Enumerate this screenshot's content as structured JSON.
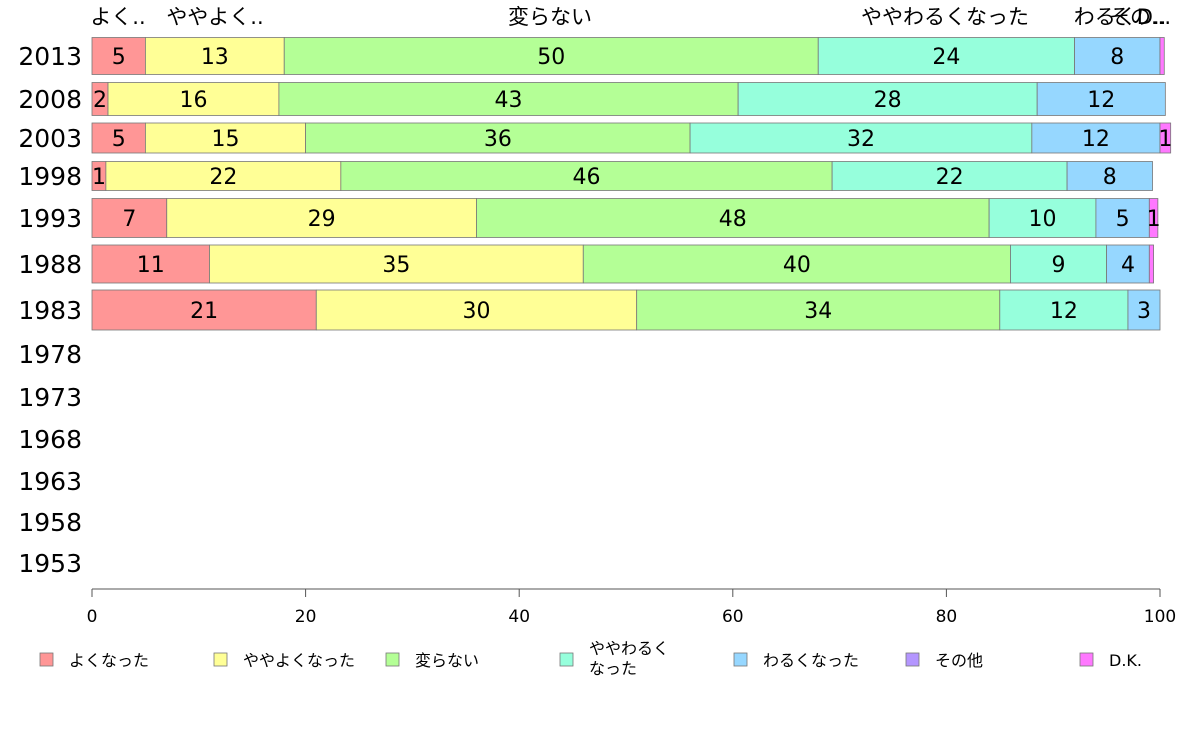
{
  "chart_data": {
    "type": "bar",
    "orientation": "horizontal",
    "stacked": true,
    "categories": [
      "2013",
      "2008",
      "2003",
      "1998",
      "1993",
      "1988",
      "1983",
      "1978",
      "1973",
      "1968",
      "1963",
      "1958",
      "1953"
    ],
    "series": [
      {
        "name": "よくなった",
        "color": "#ff9696",
        "values": [
          5,
          1.5,
          5,
          1.3,
          7,
          11,
          21,
          null,
          null,
          null,
          null,
          null,
          null
        ]
      },
      {
        "name": "ややよくなった",
        "color": "#ffff96",
        "values": [
          13,
          16,
          15,
          22,
          29,
          35,
          30,
          null,
          null,
          null,
          null,
          null,
          null
        ]
      },
      {
        "name": "変らない",
        "color": "#b4ff96",
        "values": [
          50,
          43,
          36,
          46,
          48,
          40,
          34,
          null,
          null,
          null,
          null,
          null,
          null
        ]
      },
      {
        "name": "ややわるくなった",
        "color": "#96ffdc",
        "values": [
          24,
          28,
          32,
          22,
          10,
          9,
          12,
          null,
          null,
          null,
          null,
          null,
          null
        ]
      },
      {
        "name": "わるくなった",
        "color": "#96d7ff",
        "values": [
          8,
          12,
          12,
          8,
          5,
          4,
          3,
          null,
          null,
          null,
          null,
          null,
          null
        ]
      },
      {
        "name": "その他",
        "color": "#b496ff",
        "values": [
          0,
          0,
          0,
          0,
          0,
          0,
          0,
          null,
          null,
          null,
          null,
          null,
          null
        ]
      },
      {
        "name": "D.K.",
        "color": "#ff78ff",
        "values": [
          0.4,
          0,
          1,
          0,
          0.8,
          0.4,
          0,
          null,
          null,
          null,
          null,
          null,
          null
        ]
      }
    ],
    "data_labels": [
      [
        "5",
        "13",
        "50",
        "24",
        "8",
        "",
        ""
      ],
      [
        "2",
        "16",
        "43",
        "28",
        "12",
        "",
        ""
      ],
      [
        "5",
        "15",
        "36",
        "32",
        "12",
        "",
        "1"
      ],
      [
        "1",
        "22",
        "46",
        "22",
        "8",
        "",
        ""
      ],
      [
        "7",
        "29",
        "48",
        "10",
        "5",
        "",
        "1"
      ],
      [
        "11",
        "35",
        "40",
        "9",
        "4",
        "",
        ""
      ],
      [
        "21",
        "30",
        "34",
        "12",
        "3",
        "",
        ""
      ]
    ],
    "top_labels": [
      "よく..",
      "ややよく..",
      "変らない",
      "ややわるくなった",
      "わるくD..",
      "その..."
    ],
    "legend_display": [
      "よくなった",
      "ややよくなった",
      "変らない",
      "ややわるく\nなった",
      "わるくなった",
      "その他",
      "D.K."
    ],
    "x_ticks": [
      0,
      20,
      40,
      60,
      80,
      100
    ],
    "xlim": [
      0,
      100
    ],
    "legend_position": "bottom",
    "grid": false
  }
}
